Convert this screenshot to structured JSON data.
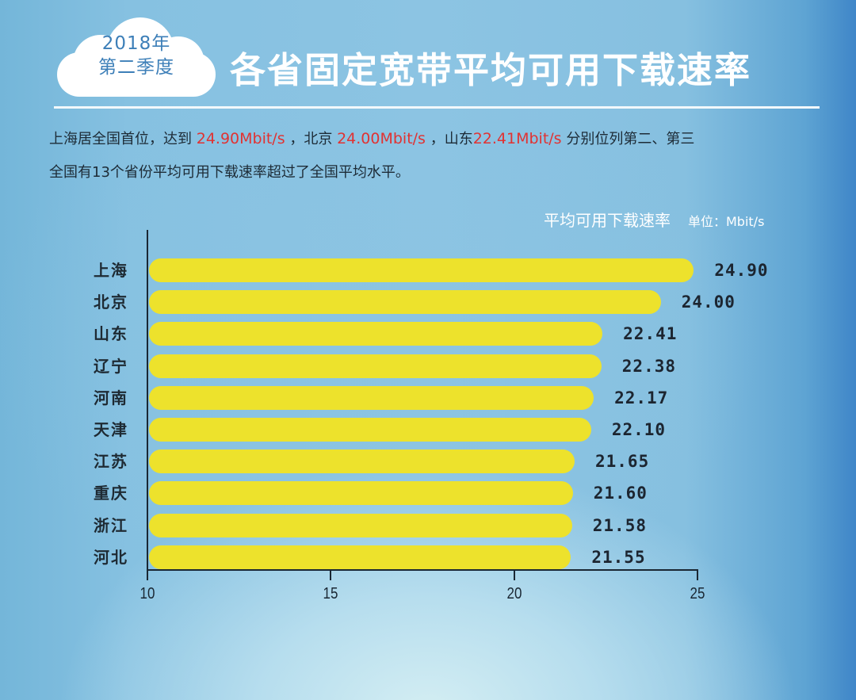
{
  "badge": {
    "line1": "2018年",
    "line2": "第二季度"
  },
  "header": {
    "title": "各省固定宽带平均可用下载速率"
  },
  "summary": {
    "line1": {
      "p1": "上海居全国首位，达到 ",
      "v1": "24.90Mbit/s",
      "p2": " ，北京 ",
      "v2": "24.00Mbit/s",
      "p3": " ，山东",
      "v3": "22.41Mbit/s",
      "p4": " 分别位列第二、第三"
    },
    "line2": "全国有13个省份平均可用下载速率超过了全国平均水平。"
  },
  "colors": {
    "bar": "#ede22c",
    "highlight": "#e13232",
    "axis": "#1a2733",
    "title": "#ffffff"
  },
  "chart_data": {
    "type": "bar",
    "orientation": "horizontal",
    "title": "平均可用下载速率",
    "unit": "单位：Mbit/s",
    "categories": [
      "上海",
      "北京",
      "山东",
      "辽宁",
      "河南",
      "天津",
      "江苏",
      "重庆",
      "浙江",
      "河北"
    ],
    "values": [
      24.9,
      24.0,
      22.41,
      22.38,
      22.17,
      22.1,
      21.65,
      21.6,
      21.58,
      21.55
    ],
    "value_labels": [
      "24.90",
      "24.00",
      "22.41",
      "22.38",
      "22.17",
      "22.10",
      "21.65",
      "21.60",
      "21.58",
      "21.55"
    ],
    "xlabel": "",
    "ylabel": "",
    "xlim": [
      10,
      25
    ],
    "xticks": [
      "10",
      "15",
      "20",
      "25"
    ],
    "grid": false,
    "legend": "none"
  }
}
